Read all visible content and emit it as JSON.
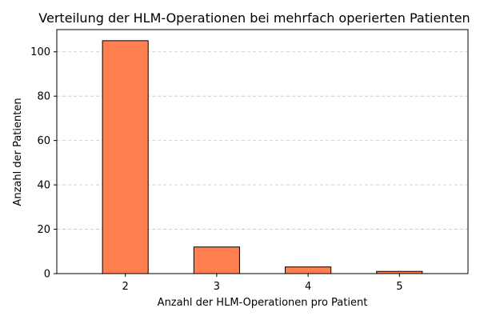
{
  "chart_data": {
    "type": "bar",
    "title": "Verteilung der HLM-Operationen bei mehrfach operierten Patienten",
    "xlabel": "Anzahl der HLM-Operationen pro Patient",
    "ylabel": "Anzahl der Patienten",
    "categories": [
      "2",
      "3",
      "4",
      "5"
    ],
    "values": [
      105,
      12,
      3,
      1
    ],
    "ylim": [
      0,
      110
    ],
    "yticks": [
      "0",
      "20",
      "40",
      "60",
      "80",
      "100"
    ],
    "grid": "y",
    "bar_color": "#ff7f50",
    "bar_edge_color": "#000000"
  }
}
